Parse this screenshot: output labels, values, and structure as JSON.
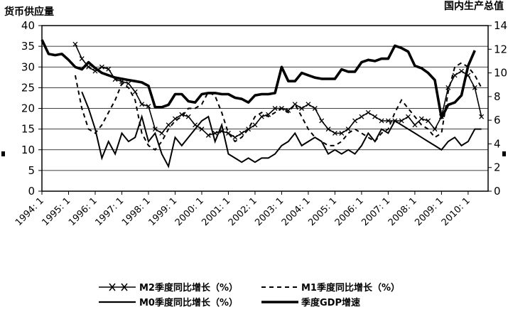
{
  "chart_data": {
    "type": "line",
    "left_axis_title": "货币供应量",
    "right_axis_title": "国内生产总值",
    "ylim_left": [
      0,
      40
    ],
    "ylim_right": [
      0,
      14
    ],
    "yticks_left": [
      "0",
      "5",
      "10",
      "15",
      "20",
      "25",
      "30",
      "35",
      "40"
    ],
    "yticks_right": [
      "0",
      "2",
      "4",
      "6",
      "8",
      "10",
      "12",
      "14"
    ],
    "x_tick_labels": [
      "1994: 1",
      "1995: 1",
      "1996: 1",
      "1997: 1",
      "1998: 1",
      "1999: 1",
      "2000: 1",
      "2001: 1",
      "2002: 1",
      "2003: 1",
      "2004: 1",
      "2005: 1",
      "2006: 1",
      "2007: 1",
      "2008: 1",
      "2009: 1",
      "2010: 1"
    ],
    "grid": "horizontal",
    "legend_position": "bottom",
    "series": [
      {
        "name": "M2季度同比增长（%）",
        "axis": "left",
        "style": "line-with-x-markers",
        "x": [
          1995.25,
          1995.5,
          1995.75,
          1996,
          1996.25,
          1996.5,
          1996.75,
          1997,
          1997.25,
          1997.5,
          1997.75,
          1998,
          1998.25,
          1998.5,
          1998.75,
          1999,
          1999.25,
          1999.5,
          1999.75,
          2000,
          2000.25,
          2000.5,
          2000.75,
          2001,
          2001.25,
          2001.5,
          2001.75,
          2002,
          2002.25,
          2002.5,
          2002.75,
          2003,
          2003.25,
          2003.5,
          2003.75,
          2004,
          2004.25,
          2004.5,
          2004.75,
          2005,
          2005.25,
          2005.5,
          2005.75,
          2006,
          2006.25,
          2006.5,
          2006.75,
          2007,
          2007.25,
          2007.5,
          2007.75,
          2008,
          2008.25,
          2008.5,
          2008.75,
          2009,
          2009.25,
          2009.5,
          2009.75,
          2010,
          2010.25,
          2010.5
        ],
        "values": [
          35.5,
          32,
          30,
          29,
          30,
          29.5,
          27,
          26.5,
          26,
          24,
          21,
          20.5,
          15,
          14,
          16,
          17.5,
          18.5,
          18,
          16,
          15,
          13.5,
          14,
          14.5,
          14,
          13,
          14,
          15,
          16,
          18,
          18.5,
          20,
          20,
          19.5,
          21,
          20,
          21,
          20,
          17,
          15,
          14,
          14,
          15,
          17,
          18,
          19,
          18,
          17,
          17,
          17,
          17,
          18,
          16,
          17.5,
          17,
          15,
          18,
          25,
          28,
          29,
          28,
          25,
          18
        ]
      },
      {
        "name": "M1季度同比增长（%）",
        "axis": "left",
        "style": "dashed",
        "x": [
          1995.25,
          1995.5,
          1995.75,
          1996,
          1996.25,
          1996.5,
          1996.75,
          1997,
          1997.25,
          1997.5,
          1997.75,
          1998,
          1998.25,
          1998.5,
          1998.75,
          1999,
          1999.25,
          1999.5,
          1999.75,
          2000,
          2000.25,
          2000.5,
          2000.75,
          2001,
          2001.25,
          2001.5,
          2001.75,
          2002,
          2002.25,
          2002.5,
          2002.75,
          2003,
          2003.25,
          2003.5,
          2003.75,
          2004,
          2004.25,
          2004.5,
          2004.75,
          2005,
          2005.25,
          2005.5,
          2005.75,
          2006,
          2006.25,
          2006.5,
          2006.75,
          2007,
          2007.25,
          2007.5,
          2007.75,
          2008,
          2008.25,
          2008.5,
          2008.75,
          2009,
          2009.25,
          2009.5,
          2009.75,
          2010,
          2010.25,
          2010.5
        ],
        "values": [
          28,
          20,
          15,
          14,
          16,
          19,
          22,
          26,
          25,
          22,
          14,
          11,
          10,
          12,
          15,
          17,
          18,
          20,
          20,
          21,
          24,
          23,
          19,
          14,
          12,
          13,
          15,
          18,
          19,
          18,
          19,
          20,
          19,
          21,
          18,
          15,
          13,
          12,
          11,
          11,
          12,
          14,
          15,
          14,
          13,
          12,
          14,
          15,
          19,
          22,
          20,
          18,
          16,
          15,
          13,
          14,
          24,
          30,
          31,
          30,
          28,
          25
        ]
      },
      {
        "name": "M0季度同比增长（%）",
        "axis": "left",
        "style": "solid-thin",
        "x": [
          1995.5,
          1995.75,
          1996,
          1996.25,
          1996.5,
          1996.75,
          1997,
          1997.25,
          1997.5,
          1997.75,
          1998,
          1998.25,
          1998.5,
          1998.75,
          1999,
          1999.25,
          1999.5,
          1999.75,
          2000,
          2000.25,
          2000.5,
          2000.75,
          2001,
          2001.25,
          2001.5,
          2001.75,
          2002,
          2002.25,
          2002.5,
          2002.75,
          2003,
          2003.25,
          2003.5,
          2003.75,
          2004,
          2004.25,
          2004.5,
          2004.75,
          2005,
          2005.25,
          2005.5,
          2005.75,
          2006,
          2006.25,
          2006.5,
          2006.75,
          2007,
          2007.25,
          2007.5,
          2007.75,
          2008,
          2008.25,
          2008.5,
          2008.75,
          2009,
          2009.25,
          2009.5,
          2009.75,
          2010,
          2010.25,
          2010.5
        ],
        "values": [
          24,
          20,
          15,
          8,
          12,
          9,
          14,
          12,
          13,
          18,
          12,
          14,
          9,
          6,
          13,
          11,
          13,
          15,
          17,
          18,
          12,
          16,
          9,
          8,
          7,
          8,
          7,
          8,
          8,
          9,
          11,
          12,
          14,
          11,
          12,
          13,
          12,
          9,
          10,
          9,
          10,
          9,
          11,
          14,
          12,
          15,
          14,
          17,
          16,
          15,
          14,
          13,
          12,
          11,
          10,
          12,
          13,
          11,
          12,
          15,
          15
        ]
      },
      {
        "name": "季度GDP增速",
        "axis": "right",
        "style": "solid-thick",
        "x": [
          1994,
          1994.25,
          1994.5,
          1994.75,
          1995,
          1995.25,
          1995.5,
          1995.75,
          1996,
          1996.25,
          1996.5,
          1996.75,
          1997,
          1997.25,
          1997.5,
          1997.75,
          1998,
          1998.25,
          1998.5,
          1998.75,
          1999,
          1999.25,
          1999.5,
          1999.75,
          2000,
          2000.25,
          2000.5,
          2000.75,
          2001,
          2001.25,
          2001.5,
          2001.75,
          2002,
          2002.25,
          2002.5,
          2002.75,
          2003,
          2003.25,
          2003.5,
          2003.75,
          2004,
          2004.25,
          2004.5,
          2004.75,
          2005,
          2005.25,
          2005.5,
          2005.75,
          2006,
          2006.25,
          2006.5,
          2006.75,
          2007,
          2007.25,
          2007.5,
          2007.75,
          2008,
          2008.25,
          2008.5,
          2008.75,
          2009,
          2009.25,
          2009.5,
          2009.75,
          2010,
          2010.25
        ],
        "values": [
          12.8,
          11.6,
          11.5,
          11.6,
          11.1,
          10.5,
          10.3,
          10.9,
          10.4,
          10,
          9.8,
          9.6,
          9.5,
          9.4,
          9.3,
          9.2,
          8.9,
          7.1,
          7.1,
          7.3,
          8.2,
          8.2,
          7.6,
          7.5,
          8.2,
          8.3,
          8.3,
          8.2,
          8.2,
          7.9,
          7.8,
          7.5,
          8.1,
          8.2,
          8.2,
          8.3,
          10.5,
          9.3,
          9.3,
          10,
          9.8,
          9.6,
          9.5,
          9.5,
          9.5,
          10.3,
          10.1,
          10.1,
          10.9,
          11.1,
          11,
          11.2,
          11.2,
          12.3,
          12.1,
          11.8,
          10.6,
          10.4,
          10,
          9.4,
          6.2,
          7.3,
          7.5,
          8.1,
          10.6,
          11.9
        ]
      }
    ]
  }
}
